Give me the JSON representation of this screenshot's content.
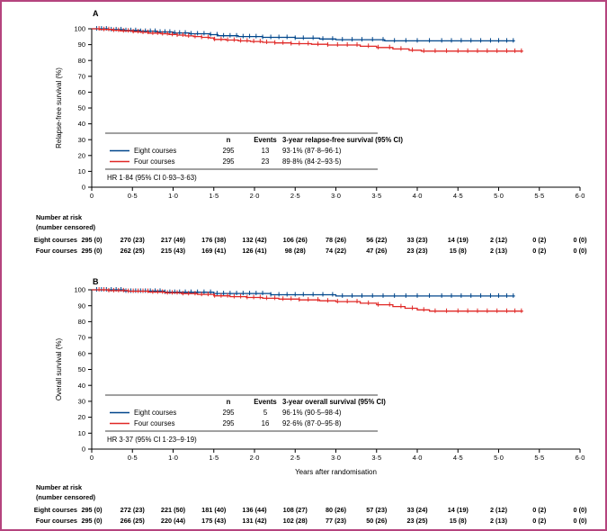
{
  "figure": {
    "border_color": "#b5447e",
    "background": "#ffffff"
  },
  "chart_data": {
    "type": "line",
    "subtype": "kaplan-meier-step",
    "x_axis": {
      "label": "Years after randomisation",
      "ticks": [
        "0",
        "0·5",
        "1·0",
        "1·5",
        "2·0",
        "2·5",
        "3·0",
        "3·5",
        "4·0",
        "4·5",
        "5·0",
        "5·5",
        "6·0"
      ],
      "tick_values": [
        0,
        0.5,
        1,
        1.5,
        2,
        2.5,
        3,
        3.5,
        4,
        4.5,
        5,
        5.5,
        6
      ],
      "range": [
        0,
        6
      ]
    },
    "colors": {
      "eight_courses": "#00468b",
      "four_courses": "#e02826"
    },
    "panels": [
      {
        "panel_label": "A",
        "ylabel": "Relapse-free survival (%)",
        "y_ticks": [
          0,
          10,
          20,
          30,
          40,
          50,
          60,
          70,
          80,
          90,
          100
        ],
        "ylim": [
          0,
          100
        ],
        "legend_table": {
          "headers": [
            "n",
            "Events",
            "3-year relapse-free survival (95% CI)"
          ],
          "rows": [
            {
              "name": "Eight courses",
              "color": "#00468b",
              "n": "295",
              "events": "13",
              "estimate": "93·1% (87·8–96·1)"
            },
            {
              "name": "Four courses",
              "color": "#e02826",
              "n": "295",
              "events": "23",
              "estimate": "89·8% (84·2–93·5)"
            }
          ]
        },
        "hr_text": "HR 1·84 (95% CI 0·93–3·63)",
        "series": [
          {
            "name": "Eight courses",
            "color": "#00468b",
            "points": [
              [
                0,
                100
              ],
              [
                0.2,
                99.5
              ],
              [
                0.4,
                99.0
              ],
              [
                0.6,
                98.5
              ],
              [
                0.8,
                98.0
              ],
              [
                1.0,
                97.4
              ],
              [
                1.2,
                96.9
              ],
              [
                1.45,
                96.3
              ],
              [
                1.55,
                95.6
              ],
              [
                1.8,
                95.1
              ],
              [
                2.1,
                94.6
              ],
              [
                2.5,
                94.1
              ],
              [
                2.8,
                93.6
              ],
              [
                3.0,
                93.1
              ],
              [
                3.6,
                92.4
              ],
              [
                5.2,
                92.4
              ]
            ],
            "censor_x": [
              0.06,
              0.12,
              0.18,
              0.24,
              0.3,
              0.36,
              0.42,
              0.48,
              0.54,
              0.6,
              0.66,
              0.72,
              0.78,
              0.84,
              0.9,
              0.96,
              1.02,
              1.08,
              1.15,
              1.22,
              1.3,
              1.38,
              1.46,
              1.54,
              1.62,
              1.7,
              1.78,
              1.86,
              1.94,
              2.02,
              2.1,
              2.2,
              2.3,
              2.4,
              2.5,
              2.6,
              2.72,
              2.84,
              2.96,
              3.08,
              3.2,
              3.32,
              3.45,
              3.58,
              3.72,
              3.86,
              4.0,
              4.15,
              4.3,
              4.42,
              4.54,
              4.66,
              4.78,
              4.9,
              5.0,
              5.1,
              5.18
            ]
          },
          {
            "name": "Four courses",
            "color": "#e02826",
            "points": [
              [
                0,
                100
              ],
              [
                0.1,
                99.6
              ],
              [
                0.25,
                99.1
              ],
              [
                0.35,
                98.7
              ],
              [
                0.5,
                98.2
              ],
              [
                0.6,
                97.8
              ],
              [
                0.7,
                97.3
              ],
              [
                0.85,
                96.9
              ],
              [
                0.95,
                96.4
              ],
              [
                1.05,
                96.0
              ],
              [
                1.15,
                95.5
              ],
              [
                1.25,
                95.1
              ],
              [
                1.35,
                94.6
              ],
              [
                1.45,
                94.2
              ],
              [
                1.5,
                93.3
              ],
              [
                1.65,
                92.9
              ],
              [
                1.8,
                92.4
              ],
              [
                1.95,
                92.0
              ],
              [
                2.1,
                91.5
              ],
              [
                2.25,
                91.1
              ],
              [
                2.45,
                90.6
              ],
              [
                2.7,
                90.2
              ],
              [
                2.9,
                89.8
              ],
              [
                3.3,
                89.0
              ],
              [
                3.5,
                88.2
              ],
              [
                3.7,
                87.3
              ],
              [
                3.9,
                86.5
              ],
              [
                4.05,
                85.9
              ],
              [
                5.3,
                85.9
              ]
            ],
            "censor_x": [
              0.09,
              0.15,
              0.21,
              0.27,
              0.33,
              0.39,
              0.45,
              0.51,
              0.57,
              0.63,
              0.69,
              0.75,
              0.81,
              0.87,
              0.93,
              0.99,
              1.05,
              1.12,
              1.19,
              1.27,
              1.35,
              1.43,
              1.51,
              1.59,
              1.67,
              1.75,
              1.83,
              1.91,
              1.99,
              2.07,
              2.15,
              2.25,
              2.35,
              2.45,
              2.55,
              2.66,
              2.78,
              2.9,
              3.02,
              3.14,
              3.26,
              3.4,
              3.52,
              3.66,
              3.8,
              3.94,
              4.08,
              4.22,
              4.36,
              4.5,
              4.62,
              4.74,
              4.86,
              4.98,
              5.1,
              5.2,
              5.28
            ]
          }
        ],
        "risk_table": {
          "header_line1": "Number at risk",
          "header_line2": "(number censored)",
          "rows": [
            {
              "name": "Eight courses",
              "values": [
                "295 (0)",
                "270 (23)",
                "217 (49)",
                "176 (38)",
                "132 (42)",
                "106 (26)",
                "78 (26)",
                "56 (22)",
                "33 (23)",
                "14 (19)",
                "2 (12)",
                "0 (2)",
                "0 (0)"
              ]
            },
            {
              "name": "Four courses",
              "values": [
                "295 (0)",
                "262 (25)",
                "215 (43)",
                "169 (41)",
                "126 (41)",
                "98 (28)",
                "74 (22)",
                "47 (26)",
                "23 (23)",
                "15 (8)",
                "2 (13)",
                "0 (2)",
                "0 (0)"
              ]
            }
          ]
        }
      },
      {
        "panel_label": "B",
        "ylabel": "Overall survival (%)",
        "y_ticks": [
          0,
          10,
          20,
          30,
          40,
          50,
          60,
          70,
          80,
          90,
          100
        ],
        "ylim": [
          0,
          100
        ],
        "legend_table": {
          "headers": [
            "n",
            "Events",
            "3-year overall survival (95% CI)"
          ],
          "rows": [
            {
              "name": "Eight courses",
              "color": "#00468b",
              "n": "295",
              "events": "5",
              "estimate": "96·1% (90·5–98·4)"
            },
            {
              "name": "Four courses",
              "color": "#e02826",
              "n": "295",
              "events": "16",
              "estimate": "92·6% (87·0–95·8)"
            }
          ]
        },
        "hr_text": "HR 3·37 (95% CI 1·23–9·19)",
        "series": [
          {
            "name": "Eight courses",
            "color": "#00468b",
            "points": [
              [
                0,
                100
              ],
              [
                0.4,
                99.2
              ],
              [
                0.9,
                98.5
              ],
              [
                1.5,
                97.7
              ],
              [
                2.2,
                96.9
              ],
              [
                3.0,
                96.1
              ],
              [
                5.2,
                96.1
              ]
            ],
            "censor_x": [
              0.06,
              0.12,
              0.18,
              0.24,
              0.3,
              0.36,
              0.42,
              0.48,
              0.54,
              0.6,
              0.66,
              0.72,
              0.78,
              0.84,
              0.9,
              0.96,
              1.02,
              1.08,
              1.15,
              1.22,
              1.3,
              1.38,
              1.46,
              1.54,
              1.62,
              1.7,
              1.78,
              1.86,
              1.94,
              2.02,
              2.1,
              2.2,
              2.3,
              2.4,
              2.5,
              2.6,
              2.72,
              2.84,
              2.96,
              3.08,
              3.2,
              3.32,
              3.45,
              3.58,
              3.72,
              3.86,
              4.0,
              4.15,
              4.3,
              4.42,
              4.54,
              4.66,
              4.78,
              4.9,
              5.0,
              5.1,
              5.18
            ]
          },
          {
            "name": "Four courses",
            "color": "#e02826",
            "points": [
              [
                0,
                100
              ],
              [
                0.2,
                99.5
              ],
              [
                0.45,
                99.1
              ],
              [
                0.7,
                98.6
              ],
              [
                0.9,
                98.1
              ],
              [
                1.1,
                97.6
              ],
              [
                1.3,
                97.1
              ],
              [
                1.5,
                96.2
              ],
              [
                1.7,
                95.7
              ],
              [
                1.9,
                95.2
              ],
              [
                2.1,
                94.7
              ],
              [
                2.3,
                94.2
              ],
              [
                2.55,
                93.7
              ],
              [
                2.8,
                93.1
              ],
              [
                3.0,
                92.6
              ],
              [
                3.3,
                91.6
              ],
              [
                3.5,
                90.6
              ],
              [
                3.7,
                89.5
              ],
              [
                3.85,
                88.4
              ],
              [
                4.0,
                87.4
              ],
              [
                4.15,
                86.6
              ],
              [
                5.3,
                86.6
              ]
            ],
            "censor_x": [
              0.09,
              0.15,
              0.21,
              0.27,
              0.33,
              0.39,
              0.45,
              0.51,
              0.57,
              0.63,
              0.69,
              0.75,
              0.81,
              0.87,
              0.93,
              0.99,
              1.05,
              1.12,
              1.19,
              1.27,
              1.35,
              1.43,
              1.51,
              1.59,
              1.67,
              1.75,
              1.83,
              1.91,
              1.99,
              2.07,
              2.15,
              2.25,
              2.35,
              2.45,
              2.55,
              2.66,
              2.78,
              2.9,
              3.02,
              3.14,
              3.26,
              3.4,
              3.52,
              3.66,
              3.8,
              3.94,
              4.08,
              4.22,
              4.36,
              4.5,
              4.62,
              4.74,
              4.86,
              4.98,
              5.1,
              5.2,
              5.28
            ]
          }
        ],
        "risk_table": {
          "header_line1": "Number at risk",
          "header_line2": "(number censored)",
          "rows": [
            {
              "name": "Eight courses",
              "values": [
                "295 (0)",
                "272 (23)",
                "221 (50)",
                "181 (40)",
                "136 (44)",
                "108 (27)",
                "80 (26)",
                "57 (23)",
                "33 (24)",
                "14 (19)",
                "2 (12)",
                "0 (2)",
                "0 (0)"
              ]
            },
            {
              "name": "Four courses",
              "values": [
                "295 (0)",
                "266 (25)",
                "220 (44)",
                "175 (43)",
                "131 (42)",
                "102 (28)",
                "77 (23)",
                "50 (26)",
                "23 (25)",
                "15 (8)",
                "2 (13)",
                "0 (2)",
                "0 (0)"
              ]
            }
          ]
        }
      }
    ]
  }
}
